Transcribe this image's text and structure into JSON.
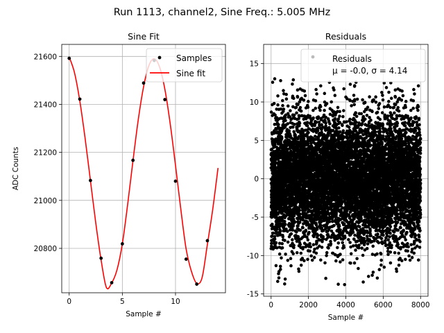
{
  "figure": {
    "suptitle": "Run 1113, channel2, Sine Freq.: 5.005 MHz"
  },
  "chart_data": [
    {
      "type": "scatter",
      "title": "Sine Fit",
      "xlabel": "Sample #",
      "ylabel": "ADC Counts",
      "xlim": [
        -0.7,
        14.7
      ],
      "ylim": [
        20615,
        21650
      ],
      "xticks": [
        0,
        5,
        10
      ],
      "yticks": [
        20800,
        21000,
        21200,
        21400,
        21600
      ],
      "grid": true,
      "legend": {
        "placement": "upper right",
        "entries": [
          "Samples",
          "Sine fit"
        ]
      },
      "colors": {
        "samples": "#000000",
        "fit": "#ff0000",
        "grid": "#b0b0b0"
      },
      "series": [
        {
          "name": "Samples",
          "kind": "points",
          "x": [
            0,
            1,
            2,
            3,
            4,
            5,
            6,
            7,
            8,
            9,
            10,
            11,
            12,
            13
          ],
          "y": [
            21592,
            21422,
            21083,
            20759,
            20657,
            20819,
            21167,
            21489,
            21583,
            21420,
            21080,
            20755,
            20651,
            20832
          ]
        },
        {
          "name": "Sine fit",
          "kind": "line",
          "x": [
            0,
            0.5,
            1,
            1.5,
            2,
            2.5,
            3,
            3.5,
            4,
            4.5,
            5,
            5.5,
            6,
            6.5,
            7,
            7.5,
            8,
            8.5,
            9,
            9.5,
            10,
            10.5,
            11,
            11.5,
            12,
            12.5,
            13,
            13.5,
            14
          ],
          "y": [
            21598,
            21532,
            21414,
            21258,
            21082,
            20906,
            20752,
            20637,
            20656,
            20711,
            20819,
            20983,
            21165,
            21337,
            21474,
            21562,
            21590,
            21556,
            21463,
            21320,
            21146,
            20963,
            20797,
            20704,
            20654,
            20678,
            20817,
            20962,
            21135
          ]
        }
      ]
    },
    {
      "type": "scatter",
      "title": "Residuals",
      "xlabel": "Sample #",
      "ylim": [
        -15.3,
        17.5
      ],
      "xlim": [
        -400,
        8400
      ],
      "xticks": [
        0,
        2000,
        4000,
        6000,
        8000
      ],
      "yticks": [
        -15,
        -10,
        -5,
        0,
        5,
        10,
        15
      ],
      "grid": true,
      "legend": {
        "placement": "upper right",
        "entries": [
          "Residuals",
          "μ = -0.0, σ = 4.14"
        ]
      },
      "colors": {
        "points": "#000000",
        "legend_marker": "#bbbbbb",
        "grid": "#b0b0b0"
      },
      "series": [
        {
          "name": "Residuals",
          "kind": "points",
          "n_points": 8000,
          "x_range": [
            0,
            8000
          ],
          "mean": 0.0,
          "std": 4.14,
          "y_range": [
            -13.8,
            13.2
          ]
        }
      ]
    }
  ]
}
